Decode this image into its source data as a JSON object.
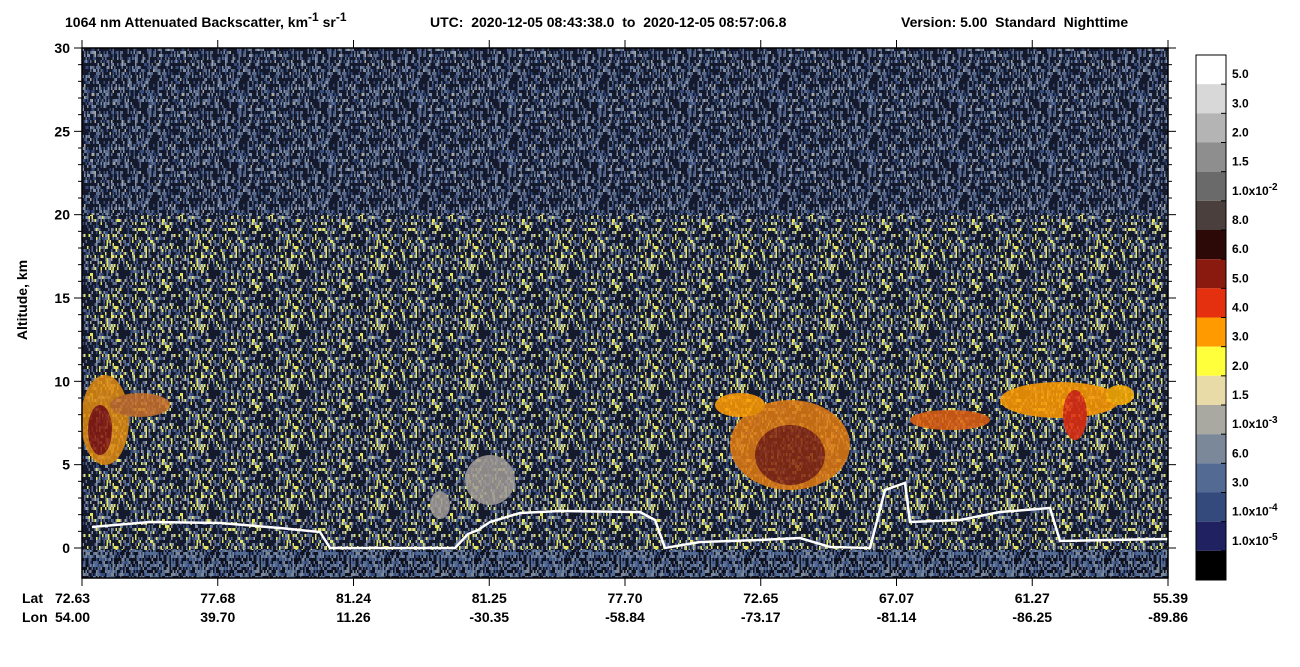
{
  "chart_data": {
    "type": "heatmap",
    "title": [
      "1064 nm Attenuated Backscatter, km",
      "-1",
      " sr",
      "-1"
    ],
    "subtitle": "UTC:  2020-12-05 08:43:38.0  to  2020-12-05 08:57:06.8",
    "version": "Version: 5.00  Standard  Nighttime",
    "y_label": "Altitude, km",
    "ylim": [
      -1.8,
      30
    ],
    "yticks": [
      0,
      5,
      10,
      15,
      20,
      25,
      30
    ],
    "x_rows": [
      {
        "name": "Lat",
        "labels": [
          "72.63",
          "77.68",
          "81.24",
          "81.25",
          "77.70",
          "72.65",
          "67.07",
          "61.27",
          "55.39"
        ]
      },
      {
        "name": "Lon",
        "labels": [
          "54.00",
          "39.70",
          "11.26",
          "-30.35",
          "-58.84",
          "-73.17",
          "-81.14",
          "-86.25",
          "-89.86"
        ]
      }
    ],
    "colorbar": {
      "colors": [
        "#ffffff",
        "#d8d8d8",
        "#b4b4b4",
        "#8e8e8e",
        "#6a6a6a",
        "#4a3f3d",
        "#2c0806",
        "#8a1a10",
        "#e4300f",
        "#ff9b00",
        "#ffff3c",
        "#e8dba8",
        "#a9a9a1",
        "#7a8899",
        "#536a92",
        "#354a7c",
        "#1f2160",
        "#000000"
      ],
      "labels": [
        "5.0",
        "3.0",
        "2.0",
        "1.5",
        {
          "text": "1.0x10",
          "sup": "-2"
        },
        "8.0",
        "6.0",
        "5.0",
        "4.0",
        "3.0",
        "2.0",
        "1.5",
        {
          "text": "1.0x10",
          "sup": "-3"
        },
        "6.0",
        "3.0",
        {
          "text": "1.0x10",
          "sup": "-4"
        },
        {
          "text": "1.0x10",
          "sup": "-5"
        }
      ]
    }
  }
}
